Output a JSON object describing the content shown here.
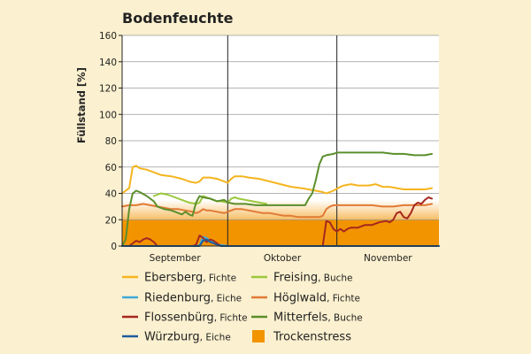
{
  "chart_data": {
    "type": "line",
    "title": "Bodenfeuchte",
    "ylabel": "Füllstand [%]",
    "xlabel": "",
    "ylim": [
      0,
      160
    ],
    "yticks": [
      0,
      20,
      40,
      60,
      80,
      100,
      120,
      140,
      160
    ],
    "x_unit": "day index (1 Sep = 0)",
    "xlim": [
      0,
      90
    ],
    "month_dividers": [
      30,
      61
    ],
    "month_labels": [
      {
        "label": "September",
        "x": 15
      },
      {
        "label": "Oktober",
        "x": 45.5
      },
      {
        "label": "November",
        "x": 75.5
      }
    ],
    "grid": true,
    "legend_position": "bottom",
    "threshold": {
      "name": "Trockenstress",
      "y_from": 0,
      "y_to": 20,
      "fade_to": 35,
      "color": "#f29400"
    },
    "series": [
      {
        "name": "Ebersberg",
        "tree": "Fichte",
        "color": "#f5b51f",
        "points": [
          [
            0,
            40
          ],
          [
            1,
            42
          ],
          [
            2,
            44
          ],
          [
            3,
            60
          ],
          [
            4,
            61
          ],
          [
            5,
            59
          ],
          [
            7,
            58
          ],
          [
            9,
            56
          ],
          [
            11,
            54
          ],
          [
            14,
            53
          ],
          [
            17,
            51
          ],
          [
            19,
            49
          ],
          [
            21,
            48
          ],
          [
            22,
            49
          ],
          [
            23,
            52
          ],
          [
            25,
            52
          ],
          [
            27,
            51
          ],
          [
            29,
            49
          ],
          [
            30,
            48
          ],
          [
            31,
            51
          ],
          [
            32,
            53
          ],
          [
            34,
            53
          ],
          [
            36,
            52
          ],
          [
            39,
            51
          ],
          [
            42,
            49
          ],
          [
            45,
            47
          ],
          [
            48,
            45
          ],
          [
            51,
            44
          ],
          [
            53,
            43
          ],
          [
            55,
            42
          ],
          [
            57,
            41
          ],
          [
            58,
            40
          ],
          [
            60,
            42
          ],
          [
            62,
            45
          ],
          [
            63,
            46
          ],
          [
            65,
            47
          ],
          [
            67,
            46
          ],
          [
            70,
            46
          ],
          [
            72,
            47
          ],
          [
            74,
            45
          ],
          [
            76,
            45
          ],
          [
            78,
            44
          ],
          [
            80,
            43
          ],
          [
            83,
            43
          ],
          [
            86,
            43
          ],
          [
            88,
            44
          ]
        ]
      },
      {
        "name": "Freising",
        "tree": "Buche",
        "color": "#9cc83c",
        "points": [
          [
            9,
            38
          ],
          [
            11,
            40
          ],
          [
            13,
            39
          ],
          [
            15,
            37
          ],
          [
            17,
            35
          ],
          [
            19,
            33
          ],
          [
            21,
            32
          ],
          [
            22,
            33
          ],
          [
            23,
            38
          ],
          [
            24,
            37
          ],
          [
            25,
            36
          ],
          [
            26,
            35
          ],
          [
            27,
            34
          ],
          [
            28,
            34
          ],
          [
            30,
            33
          ],
          [
            31,
            36
          ],
          [
            32,
            37
          ],
          [
            33,
            36
          ],
          [
            35,
            35
          ],
          [
            37,
            34
          ],
          [
            39,
            33
          ],
          [
            41,
            32
          ]
        ]
      },
      {
        "name": "Riedenburg",
        "tree": "Eiche",
        "color": "#3fa9d8",
        "points": [
          [
            0,
            0
          ],
          [
            20,
            0
          ],
          [
            22,
            0.5
          ],
          [
            23,
            7
          ],
          [
            24,
            6
          ],
          [
            25,
            4
          ],
          [
            26,
            3
          ],
          [
            27,
            1
          ],
          [
            29,
            0.5
          ],
          [
            30,
            0
          ],
          [
            90,
            0
          ]
        ]
      },
      {
        "name": "Höglwald",
        "tree": "Fichte",
        "color": "#e07a35",
        "points": [
          [
            0,
            30
          ],
          [
            2,
            31
          ],
          [
            4,
            31
          ],
          [
            6,
            32
          ],
          [
            8,
            31
          ],
          [
            10,
            30
          ],
          [
            12,
            29
          ],
          [
            14,
            28
          ],
          [
            16,
            28
          ],
          [
            18,
            27
          ],
          [
            20,
            26
          ],
          [
            21,
            25
          ],
          [
            22,
            26
          ],
          [
            23,
            28
          ],
          [
            24,
            27
          ],
          [
            25,
            27
          ],
          [
            27,
            26
          ],
          [
            29,
            25
          ],
          [
            30,
            26
          ],
          [
            32,
            28
          ],
          [
            34,
            28
          ],
          [
            36,
            27
          ],
          [
            38,
            26
          ],
          [
            40,
            25
          ],
          [
            42,
            25
          ],
          [
            44,
            24
          ],
          [
            46,
            23
          ],
          [
            48,
            23
          ],
          [
            50,
            22
          ],
          [
            52,
            22
          ],
          [
            54,
            22
          ],
          [
            56,
            22
          ],
          [
            57,
            23
          ],
          [
            58,
            28
          ],
          [
            59,
            30
          ],
          [
            60,
            31
          ],
          [
            62,
            31
          ],
          [
            65,
            31
          ],
          [
            68,
            31
          ],
          [
            71,
            31
          ],
          [
            74,
            30
          ],
          [
            77,
            30
          ],
          [
            80,
            31
          ],
          [
            83,
            31
          ],
          [
            86,
            31
          ],
          [
            88,
            32
          ]
        ]
      },
      {
        "name": "Flossenbürg",
        "tree": "Fichte",
        "color": "#a5281e",
        "points": [
          [
            0,
            0
          ],
          [
            2,
            0
          ],
          [
            3,
            2
          ],
          [
            4,
            4
          ],
          [
            5,
            3
          ],
          [
            6,
            5
          ],
          [
            7,
            6
          ],
          [
            8,
            5
          ],
          [
            9,
            3
          ],
          [
            10,
            0
          ],
          [
            20,
            0
          ],
          [
            21,
            1
          ],
          [
            22,
            8
          ],
          [
            23,
            6
          ],
          [
            24,
            3
          ],
          [
            25,
            5
          ],
          [
            26,
            4
          ],
          [
            27,
            2
          ],
          [
            28,
            0
          ],
          [
            57,
            0
          ],
          [
            58,
            19
          ],
          [
            59,
            18
          ],
          [
            60,
            13
          ],
          [
            61,
            11
          ],
          [
            62,
            13
          ],
          [
            63,
            11
          ],
          [
            64,
            13
          ],
          [
            65,
            14
          ],
          [
            67,
            14
          ],
          [
            69,
            16
          ],
          [
            71,
            16
          ],
          [
            73,
            18
          ],
          [
            75,
            19
          ],
          [
            76,
            18
          ],
          [
            77,
            20
          ],
          [
            78,
            25
          ],
          [
            79,
            26
          ],
          [
            80,
            22
          ],
          [
            81,
            21
          ],
          [
            82,
            25
          ],
          [
            83,
            31
          ],
          [
            84,
            33
          ],
          [
            85,
            32
          ],
          [
            86,
            35
          ],
          [
            87,
            37
          ],
          [
            88,
            36
          ]
        ]
      },
      {
        "name": "Mitterfels",
        "tree": "Buche",
        "color": "#5b8f2c",
        "points": [
          [
            0,
            0
          ],
          [
            1,
            5
          ],
          [
            2,
            28
          ],
          [
            3,
            40
          ],
          [
            4,
            42
          ],
          [
            5,
            41
          ],
          [
            7,
            38
          ],
          [
            9,
            34
          ],
          [
            10,
            30
          ],
          [
            12,
            28
          ],
          [
            14,
            27
          ],
          [
            15,
            26
          ],
          [
            17,
            24
          ],
          [
            18,
            26
          ],
          [
            19,
            24
          ],
          [
            20,
            23
          ],
          [
            21,
            33
          ],
          [
            22,
            38
          ],
          [
            23,
            37
          ],
          [
            25,
            36
          ],
          [
            27,
            34
          ],
          [
            29,
            35
          ],
          [
            30,
            33
          ],
          [
            32,
            32
          ],
          [
            35,
            32
          ],
          [
            38,
            31
          ],
          [
            41,
            31
          ],
          [
            44,
            31
          ],
          [
            47,
            31
          ],
          [
            50,
            31
          ],
          [
            52,
            31
          ],
          [
            53,
            36
          ],
          [
            54,
            40
          ],
          [
            55,
            50
          ],
          [
            56,
            62
          ],
          [
            57,
            68
          ],
          [
            58,
            69
          ],
          [
            60,
            70
          ],
          [
            61,
            71
          ],
          [
            63,
            71
          ],
          [
            65,
            71
          ],
          [
            68,
            71
          ],
          [
            71,
            71
          ],
          [
            74,
            71
          ],
          [
            77,
            70
          ],
          [
            80,
            70
          ],
          [
            83,
            69
          ],
          [
            86,
            69
          ],
          [
            88,
            70
          ]
        ]
      },
      {
        "name": "Würzburg",
        "tree": "Eiche",
        "color": "#1d5c9c",
        "points": [
          [
            0,
            0
          ],
          [
            22,
            0
          ],
          [
            23,
            4
          ],
          [
            24,
            5
          ],
          [
            25,
            3
          ],
          [
            26,
            2
          ],
          [
            27,
            1
          ],
          [
            28,
            0
          ],
          [
            90,
            0
          ]
        ]
      }
    ]
  }
}
